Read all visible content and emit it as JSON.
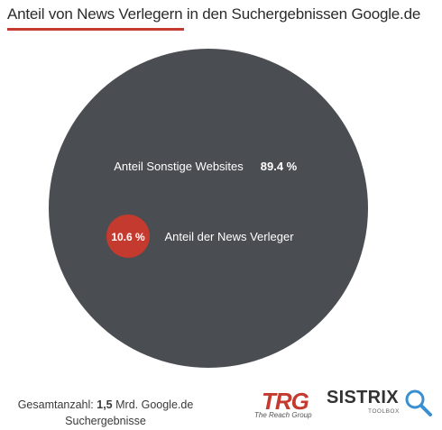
{
  "title": "Anteil von News Verlegern in den Suchergebnissen Google.de",
  "colors": {
    "accent": "#c53a2e",
    "pie_main": "#4a4d52",
    "text_light": "#ffffff"
  },
  "chart_data": {
    "type": "pie",
    "title": "Anteil von News Verlegern in den Suchergebnissen Google.de",
    "slices": [
      {
        "label": "Anteil Sonstige Websites",
        "value": 89.4,
        "value_label": "89.4 %",
        "color": "#4a4d52"
      },
      {
        "label": "Anteil der News Verleger",
        "value": 10.6,
        "value_label": "10.6 %",
        "color": "#c53a2e"
      }
    ]
  },
  "footer": {
    "prefix": "Gesamtanzahl:",
    "amount": "1,5",
    "suffix": "Mrd. Google.de",
    "line2": "Suchergebnisse"
  },
  "logos": {
    "trg": {
      "main": "TRG",
      "sub": "The Reach Group"
    },
    "sistrix": {
      "main": "SISTRIX",
      "sub": "TOOLBOX",
      "icon": "magnifier-icon"
    }
  }
}
